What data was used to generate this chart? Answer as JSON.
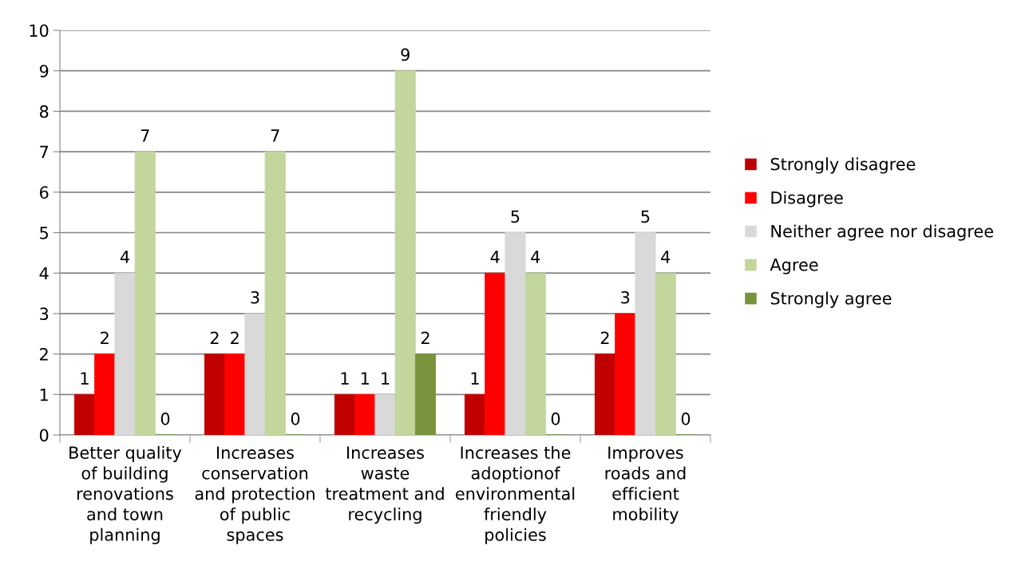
{
  "chart_data": {
    "type": "bar",
    "categories": [
      "Better quality\nof building\nrenovations\nand town\nplanning",
      "Increases\nconservation\nand protection\nof public\nspaces",
      "Increases\nwaste\ntreatment and\nrecycling",
      "Increases the\nadoptionof\nenvironmental\nfriendly\npolicies",
      "Improves\nroads and\nefficient\nmobility"
    ],
    "series": [
      {
        "name": "Strongly disagree",
        "color": "#c00000",
        "values": [
          1,
          2,
          1,
          1,
          2
        ]
      },
      {
        "name": "Disagree",
        "color": "#ff0000",
        "values": [
          2,
          2,
          1,
          4,
          3
        ]
      },
      {
        "name": "Neither agree nor disagree",
        "color": "#d9d9d9",
        "values": [
          4,
          3,
          1,
          5,
          5
        ]
      },
      {
        "name": "Agree",
        "color": "#c3d69b",
        "values": [
          7,
          7,
          9,
          4,
          4
        ]
      },
      {
        "name": "Strongly agree",
        "color": "#77933c",
        "values": [
          0,
          0,
          2,
          0,
          0
        ]
      }
    ],
    "ylim": [
      0,
      10
    ],
    "yticks": [
      0,
      1,
      2,
      3,
      4,
      5,
      6,
      7,
      8,
      9,
      10
    ],
    "grid": "y",
    "legend": "right",
    "data_labels": true
  }
}
